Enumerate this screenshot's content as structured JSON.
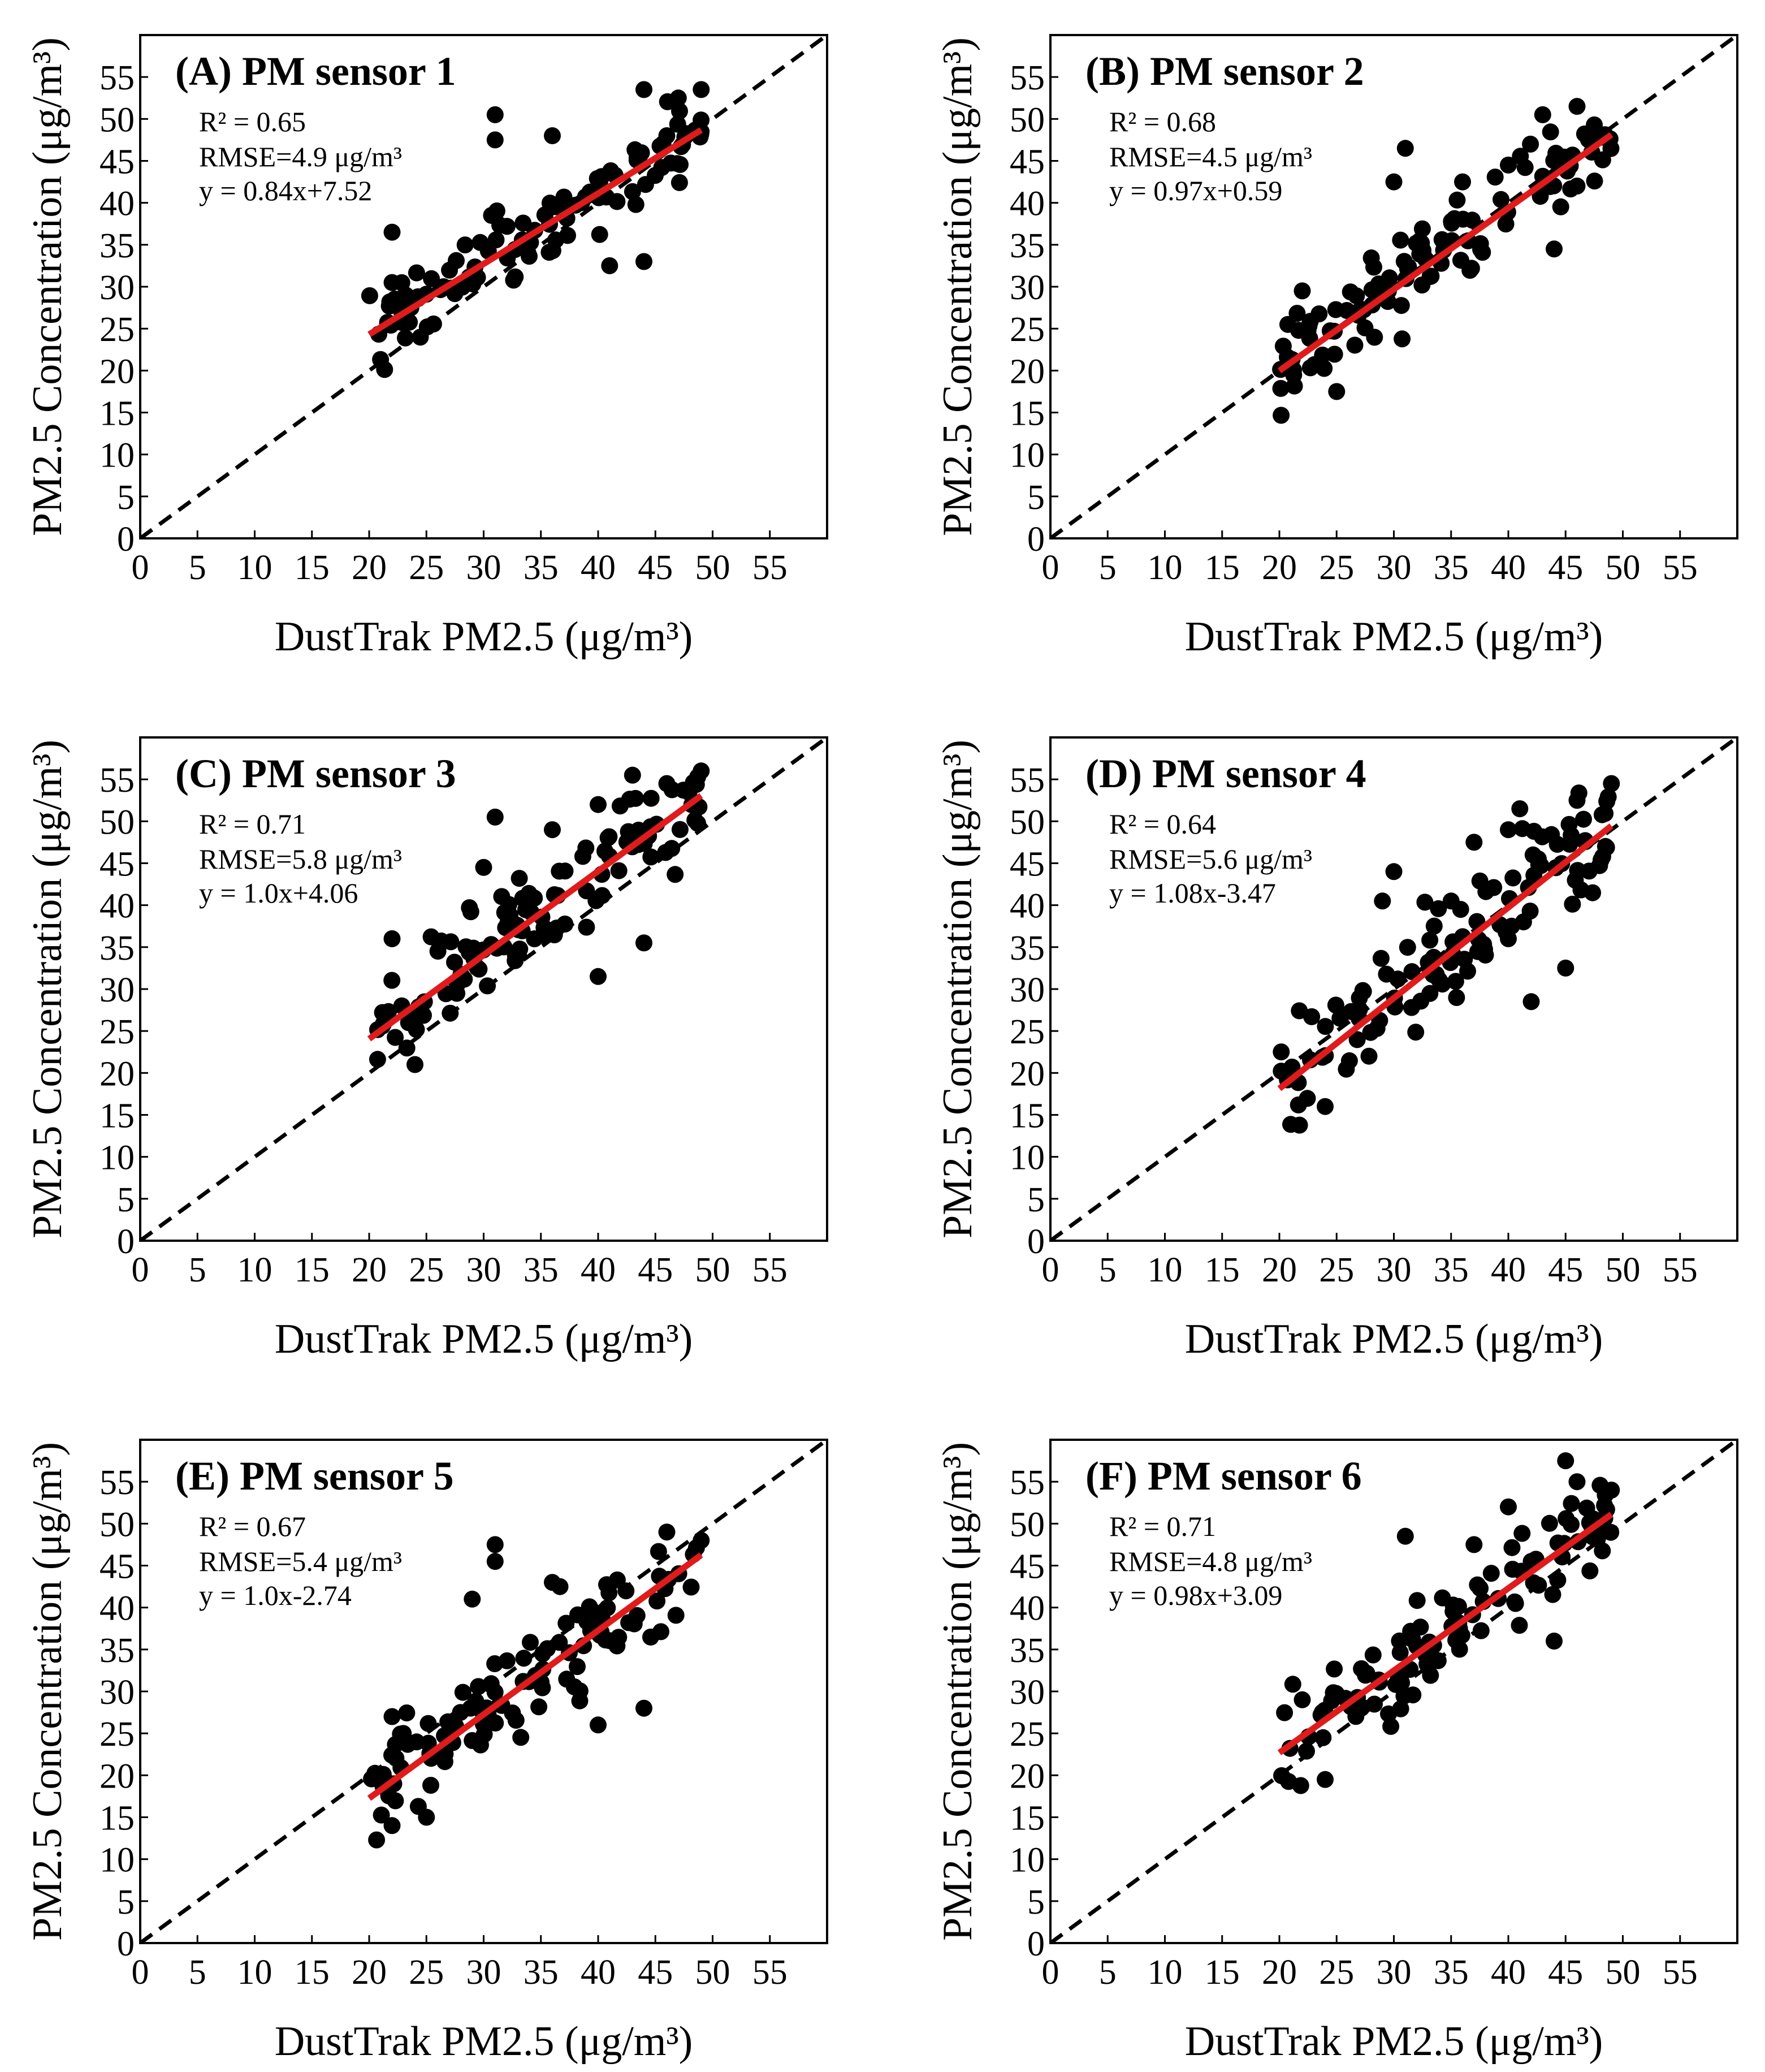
{
  "figure": {
    "x_axis_label": "DustTrak PM2.5 (μg/m³)",
    "y_axis_label": "PM2.5 Concentration (μg/m³)",
    "tick_values": [
      0,
      5,
      10,
      15,
      20,
      25,
      30,
      35,
      40,
      45,
      50,
      55
    ],
    "colors": {
      "points": "#000000",
      "fit_line": "#e01b1b",
      "identity_line": "#000000"
    }
  },
  "chart_data": [
    {
      "type": "scatter",
      "title": "(A) PM sensor 1",
      "xlabel": "DustTrak PM2.5 (μg/m³)",
      "ylabel": "PM2.5 Concentration (μg/m³)",
      "xlim": [
        0,
        60
      ],
      "ylim": [
        0,
        60
      ],
      "stats": {
        "r2": "R² = 0.65",
        "rmse": "RMSE=4.9 μg/m³",
        "equation": "y = 0.84x+7.52"
      },
      "fit": {
        "slope": 0.84,
        "intercept": 7.52,
        "x_range": [
          20,
          49
        ]
      },
      "identity_line": true,
      "cloud": {
        "x_min": 20,
        "x_max": 49,
        "spread": 2.6,
        "n": 110
      },
      "outliers": [
        [
          22,
          36.5
        ],
        [
          31,
          50.5
        ],
        [
          31,
          47.5
        ],
        [
          44,
          53.5
        ],
        [
          49,
          53.5
        ],
        [
          47,
          52.5
        ],
        [
          44,
          33
        ],
        [
          41,
          32.5
        ],
        [
          22,
          30.5
        ],
        [
          36,
          48
        ],
        [
          46,
          48
        ]
      ]
    },
    {
      "type": "scatter",
      "title": "(B) PM sensor 2",
      "xlabel": "DustTrak PM2.5 (μg/m³)",
      "ylabel": "PM2.5 Concentration (μg/m³)",
      "xlim": [
        0,
        60
      ],
      "ylim": [
        0,
        60
      ],
      "stats": {
        "r2": "R² = 0.68",
        "rmse": "RMSE=4.5 μg/m³",
        "equation": "y = 0.97x+0.59"
      },
      "fit": {
        "slope": 0.97,
        "intercept": 0.59,
        "x_range": [
          20,
          49
        ]
      },
      "identity_line": true,
      "cloud": {
        "x_min": 20,
        "x_max": 49,
        "spread": 3.0,
        "n": 110
      },
      "outliers": [
        [
          22,
          29.5
        ],
        [
          31,
          46.5
        ],
        [
          30,
          42.5
        ],
        [
          43,
          50.5
        ],
        [
          46,
          51.5
        ],
        [
          46,
          42
        ],
        [
          44,
          34.5
        ],
        [
          25,
          17.5
        ],
        [
          40,
          44.5
        ],
        [
          36,
          42.5
        ]
      ]
    },
    {
      "type": "scatter",
      "title": "(C) PM sensor 3",
      "xlabel": "DustTrak PM2.5 (μg/m³)",
      "ylabel": "PM2.5 Concentration (μg/m³)",
      "xlim": [
        0,
        60
      ],
      "ylim": [
        0,
        60
      ],
      "stats": {
        "r2": "R² = 0.71",
        "rmse": "RMSE=5.8 μg/m³",
        "equation": "y = 1.0x+4.06"
      },
      "fit": {
        "slope": 1.0,
        "intercept": 4.06,
        "x_range": [
          20,
          49
        ]
      },
      "identity_line": true,
      "cloud": {
        "x_min": 20,
        "x_max": 49,
        "spread": 3.0,
        "n": 115
      },
      "outliers": [
        [
          22,
          36
        ],
        [
          31,
          50.5
        ],
        [
          43,
          55.5
        ],
        [
          49,
          56
        ],
        [
          46,
          54.5
        ],
        [
          40,
          31.5
        ],
        [
          44,
          35.5
        ],
        [
          40,
          52
        ],
        [
          36,
          49
        ],
        [
          30,
          44.5
        ],
        [
          24,
          21
        ]
      ]
    },
    {
      "type": "scatter",
      "title": "(D) PM sensor 4",
      "xlabel": "DustTrak PM2.5 (μg/m³)",
      "ylabel": "PM2.5 Concentration (μg/m³)",
      "xlim": [
        0,
        60
      ],
      "ylim": [
        0,
        60
      ],
      "stats": {
        "r2": "R² = 0.64",
        "rmse": "RMSE=5.6 μg/m³",
        "equation": "y = 1.08x-3.47"
      },
      "fit": {
        "slope": 1.08,
        "intercept": -3.47,
        "x_range": [
          20,
          49
        ]
      },
      "identity_line": true,
      "cloud": {
        "x_min": 20,
        "x_max": 49,
        "spread": 3.3,
        "n": 115
      },
      "outliers": [
        [
          30,
          44
        ],
        [
          29,
          40.5
        ],
        [
          37,
          47.5
        ],
        [
          41,
          51.5
        ],
        [
          49,
          54.5
        ],
        [
          46,
          52.5
        ],
        [
          42,
          28.5
        ],
        [
          45,
          32.5
        ],
        [
          40,
          36
        ],
        [
          35,
          40.5
        ],
        [
          24,
          16
        ],
        [
          40,
          49
        ]
      ]
    },
    {
      "type": "scatter",
      "title": "(E) PM sensor 5",
      "xlabel": "DustTrak PM2.5 (μg/m³)",
      "ylabel": "PM2.5 Concentration (μg/m³)",
      "xlim": [
        0,
        60
      ],
      "ylim": [
        0,
        60
      ],
      "stats": {
        "r2": "R² = 0.67",
        "rmse": "RMSE=5.4 μg/m³",
        "equation": "y = 1.0x-2.74"
      },
      "fit": {
        "slope": 1.0,
        "intercept": -2.74,
        "x_range": [
          20,
          49
        ]
      },
      "identity_line": true,
      "cloud": {
        "x_min": 20,
        "x_max": 49,
        "spread": 3.0,
        "n": 110
      },
      "outliers": [
        [
          22,
          27
        ],
        [
          31,
          47.5
        ],
        [
          31,
          45.5
        ],
        [
          46,
          49
        ],
        [
          49,
          48
        ],
        [
          40,
          26
        ],
        [
          44,
          28
        ],
        [
          29,
          41
        ],
        [
          22,
          14
        ],
        [
          36,
          43
        ],
        [
          25,
          15
        ]
      ]
    },
    {
      "type": "scatter",
      "title": "(F) PM sensor 6",
      "xlabel": "DustTrak PM2.5 (μg/m³)",
      "ylabel": "PM2.5 Concentration (μg/m³)",
      "xlim": [
        0,
        60
      ],
      "ylim": [
        0,
        60
      ],
      "stats": {
        "r2": "R² = 0.71",
        "rmse": "RMSE=4.8 μg/m³",
        "equation": "y = 0.98x+3.09"
      },
      "fit": {
        "slope": 0.98,
        "intercept": 3.09,
        "x_range": [
          20,
          49
        ]
      },
      "identity_line": true,
      "cloud": {
        "x_min": 20,
        "x_max": 49,
        "spread": 2.8,
        "n": 110
      },
      "outliers": [
        [
          45,
          57.5
        ],
        [
          31,
          48.5
        ],
        [
          40,
          52
        ],
        [
          46,
          55
        ],
        [
          49,
          54
        ],
        [
          44,
          36
        ],
        [
          24,
          19.5
        ],
        [
          22,
          29
        ],
        [
          37,
          47.5
        ],
        [
          42,
          45.5
        ]
      ]
    }
  ]
}
